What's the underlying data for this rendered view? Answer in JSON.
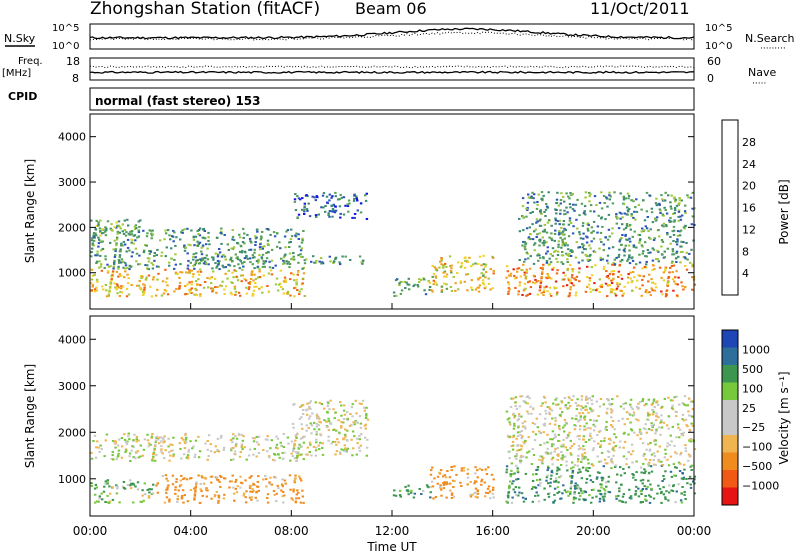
{
  "header": {
    "station": "Zhongshan Station (fitACF)",
    "beam": "Beam 06",
    "date": "11/Oct/2011"
  },
  "top_panels": {
    "nsky_label": "N.Sky",
    "nsearch_label": "N.Search",
    "nsearch_dots": "·········",
    "log_ticks_left": [
      "10^5",
      "10^0"
    ],
    "log_ticks_right": [
      "10^5",
      "10^0"
    ],
    "freq_label": "Freq.",
    "freq_unit": "[MHz]",
    "freq_ticks": [
      "18",
      "8"
    ],
    "nave_label": "Nave",
    "nave_dots": "·····",
    "nave_ticks": [
      "60",
      "0"
    ],
    "cpid_label": "CPID",
    "cpid_value": "normal (fast stereo) 153"
  },
  "colors": {
    "power": [
      "#1414e6",
      "#2b55b8",
      "#3c8c6e",
      "#55a055",
      "#a0c83c",
      "#f0d228",
      "#f0a01e",
      "#f06414",
      "#e61e14"
    ],
    "velocity": [
      "#e61414",
      "#f05a14",
      "#f08c1e",
      "#f0b450",
      "#c8c8c8",
      "#c8c8c8",
      "#78c83c",
      "#3c9650",
      "#2e6e9a",
      "#1e46b4"
    ]
  },
  "chart_data": [
    {
      "type": "heatmap",
      "panel": "power",
      "ylabel": "Slant Range [km]",
      "xlim": [
        "00:00",
        "24:00"
      ],
      "ylim": [
        200,
        4500
      ],
      "yticks": [
        "1000",
        "2000",
        "3000",
        "4000"
      ],
      "colorbar": {
        "label": "Power [dB]",
        "ticks": [
          "4",
          "8",
          "12",
          "16",
          "20",
          "24",
          "28"
        ],
        "range": [
          0,
          30
        ]
      },
      "regions": [
        {
          "t0": 0.0,
          "t1": 8.5,
          "r0": 500,
          "r1": 1100,
          "level": 20
        },
        {
          "t0": 0.0,
          "t1": 8.5,
          "r0": 1100,
          "r1": 2000,
          "level": 10
        },
        {
          "t0": 0.0,
          "t1": 2.0,
          "r0": 1700,
          "r1": 2200,
          "level": 12
        },
        {
          "t0": 4.0,
          "t1": 11.0,
          "r0": 1200,
          "r1": 1400,
          "level": 10
        },
        {
          "t0": 8.0,
          "t1": 11.0,
          "r0": 2200,
          "r1": 2800,
          "level": 6
        },
        {
          "t0": 12.0,
          "t1": 13.5,
          "r0": 500,
          "r1": 900,
          "level": 12
        },
        {
          "t0": 13.5,
          "t1": 16.0,
          "r0": 600,
          "r1": 1400,
          "level": 18
        },
        {
          "t0": 16.5,
          "t1": 24.0,
          "r0": 500,
          "r1": 1200,
          "level": 22
        },
        {
          "t0": 17.0,
          "t1": 24.0,
          "r0": 1200,
          "r1": 2800,
          "level": 10
        }
      ]
    },
    {
      "type": "heatmap",
      "panel": "velocity",
      "ylabel": "Slant Range [km]",
      "xlabel": "Time UT",
      "xlim": [
        "00:00",
        "24:00"
      ],
      "ylim": [
        200,
        4500
      ],
      "yticks": [
        "1000",
        "2000",
        "3000",
        "4000"
      ],
      "xticks": [
        "00:00",
        "04:00",
        "08:00",
        "12:00",
        "16:00",
        "20:00",
        "00:00"
      ],
      "colorbar": {
        "label": "Velocity [m s⁻¹]",
        "ticks": [
          "1000",
          "500",
          "100",
          "25",
          "−25",
          "−100",
          "−500",
          "−1000"
        ]
      },
      "regions": [
        {
          "t0": 0.0,
          "t1": 2.5,
          "r0": 500,
          "r1": 1000,
          "level": 100
        },
        {
          "t0": 2.5,
          "t1": 8.5,
          "r0": 500,
          "r1": 1100,
          "level": -200
        },
        {
          "t0": 0.0,
          "t1": 8.5,
          "r0": 1400,
          "r1": 2000,
          "level": 0
        },
        {
          "t0": 8.0,
          "t1": 11.0,
          "r0": 1500,
          "r1": 2700,
          "level": 0
        },
        {
          "t0": 12.0,
          "t1": 13.5,
          "r0": 600,
          "r1": 900,
          "level": 300
        },
        {
          "t0": 13.5,
          "t1": 16.0,
          "r0": 600,
          "r1": 1300,
          "level": -200
        },
        {
          "t0": 16.5,
          "t1": 24.0,
          "r0": 500,
          "r1": 1300,
          "level": 300
        },
        {
          "t0": 16.5,
          "t1": 24.0,
          "r0": 1300,
          "r1": 2800,
          "level": 0
        }
      ]
    }
  ]
}
